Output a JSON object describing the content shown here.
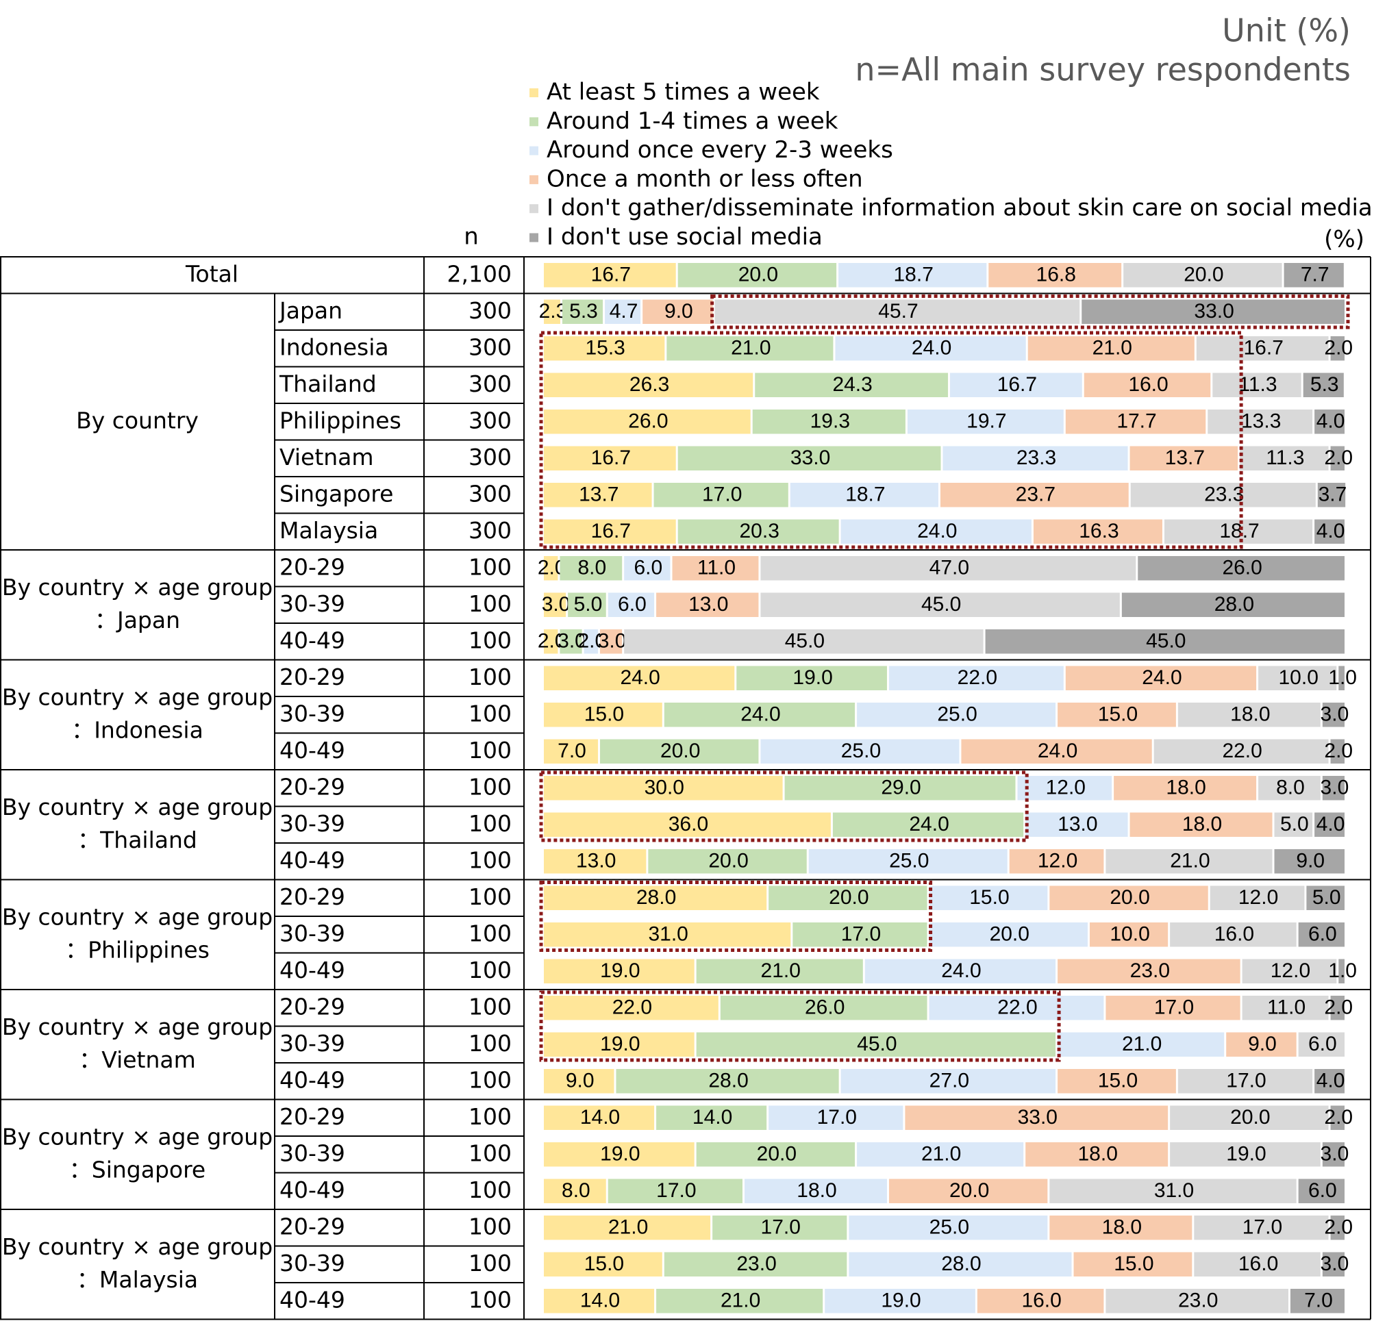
{
  "chart_data": {
    "type": "stacked-bar",
    "unit_note": "Unit (%)",
    "sample_note": "n=All main survey respondents",
    "n_header": "n",
    "percent_header": "(%)",
    "xlim": [
      0,
      100
    ],
    "groups": [
      {
        "label": [
          "Total"
        ],
        "categories": [
          null
        ]
      },
      {
        "label": [
          "By country"
        ],
        "categories": [
          "Japan",
          "Indonesia",
          "Thailand",
          "Philippines",
          "Vietnam",
          "Singapore",
          "Malaysia"
        ]
      },
      {
        "label": [
          "By country × age group",
          "：Japan"
        ],
        "categories": [
          "20-29",
          "30-39",
          "40-49"
        ]
      },
      {
        "label": [
          "By country × age group",
          "：Indonesia"
        ],
        "categories": [
          "20-29",
          "30-39",
          "40-49"
        ]
      },
      {
        "label": [
          "By country × age group",
          "：Thailand"
        ],
        "categories": [
          "20-29",
          "30-39",
          "40-49"
        ]
      },
      {
        "label": [
          "By country × age group",
          "：Philippines"
        ],
        "categories": [
          "20-29",
          "30-39",
          "40-49"
        ]
      },
      {
        "label": [
          "By country × age group",
          "：Vietnam"
        ],
        "categories": [
          "20-29",
          "30-39",
          "40-49"
        ]
      },
      {
        "label": [
          "By country × age group",
          "：Singapore"
        ],
        "categories": [
          "20-29",
          "30-39",
          "40-49"
        ]
      },
      {
        "label": [
          "By country × age group",
          "：Malaysia"
        ],
        "categories": [
          "20-29",
          "30-39",
          "40-49"
        ]
      }
    ],
    "n": [
      {
        "value": 2100,
        "label": "2,100"
      },
      300,
      300,
      300,
      300,
      300,
      300,
      300,
      100,
      100,
      100,
      100,
      100,
      100,
      100,
      100,
      100,
      100,
      100,
      100,
      100,
      100,
      100,
      100,
      100,
      100,
      100,
      100,
      100
    ],
    "series": [
      {
        "name": "At least 5 times a week",
        "color": "#FFE699",
        "values": [
          16.7,
          2.3,
          15.3,
          26.3,
          26.0,
          16.7,
          13.7,
          16.7,
          2,
          3,
          2,
          24,
          15,
          7,
          30,
          36,
          13,
          28,
          31,
          19,
          22,
          19,
          9,
          14,
          19,
          8,
          21,
          15,
          14
        ],
        "value_labels": [
          "16.7",
          "2.3",
          "15.3",
          "26.3",
          "26.0",
          "16.7",
          "13.7",
          "16.7",
          "2.0",
          "3.0",
          "2.0",
          "24.0",
          "15.0",
          "7.0",
          "30.0",
          "36.0",
          "13.0",
          "28.0",
          "31.0",
          "19.0",
          "22.0",
          "19.0",
          "9.0",
          "14.0",
          "19.0",
          "8.0",
          "21.0",
          "15.0",
          "14.0"
        ]
      },
      {
        "name": "Around 1-4 times a week",
        "color": "#C5E0B4",
        "values": [
          20.0,
          5.3,
          21.0,
          24.3,
          19.3,
          33.0,
          17.0,
          20.3,
          8,
          5,
          3,
          19,
          24,
          20,
          29,
          24,
          20,
          20,
          17,
          21,
          26,
          45,
          28,
          14,
          20,
          17,
          17,
          23,
          21
        ],
        "value_labels": [
          "20.0",
          "5.3",
          "21.0",
          "24.3",
          "19.3",
          "33.0",
          "17.0",
          "20.3",
          "8.0",
          "5.0",
          "3.0",
          "19.0",
          "24.0",
          "20.0",
          "29.0",
          "24.0",
          "20.0",
          "20.0",
          "17.0",
          "21.0",
          "26.0",
          "45.0",
          "28.0",
          "14.0",
          "20.0",
          "17.0",
          "17.0",
          "23.0",
          "21.0"
        ]
      },
      {
        "name": "Around once every 2-3 weeks",
        "color": "#DAE8F8",
        "values": [
          18.7,
          4.7,
          24.0,
          16.7,
          19.7,
          23.3,
          18.7,
          24.0,
          6,
          6,
          2,
          22,
          25,
          25,
          12,
          13,
          25,
          15,
          20,
          24,
          22,
          21,
          27,
          17,
          21,
          18,
          25,
          28,
          19
        ],
        "value_labels": [
          "18.7",
          "4.7",
          "24.0",
          "16.7",
          "19.7",
          "23.3",
          "18.7",
          "24.0",
          "6.0",
          "6.0",
          "2.0",
          "22.0",
          "25.0",
          "25.0",
          "12.0",
          "13.0",
          "25.0",
          "15.0",
          "20.0",
          "24.0",
          "22.0",
          "21.0",
          "27.0",
          "17.0",
          "21.0",
          "18.0",
          "25.0",
          "28.0",
          "19.0"
        ]
      },
      {
        "name": "Once a month or less often",
        "color": "#F8CBAD",
        "values": [
          16.8,
          9.0,
          21.0,
          16.0,
          17.7,
          13.7,
          23.7,
          16.3,
          11,
          13,
          3,
          24,
          15,
          24,
          18,
          18,
          12,
          20,
          10,
          23,
          17,
          9,
          15,
          33,
          18,
          20,
          18,
          15,
          16
        ],
        "value_labels": [
          "16.8",
          "9.0",
          "21.0",
          "16.0",
          "17.7",
          "13.7",
          "23.7",
          "16.3",
          "11.0",
          "13.0",
          "3.0",
          "24.0",
          "15.0",
          "24.0",
          "18.0",
          "18.0",
          "12.0",
          "20.0",
          "10.0",
          "23.0",
          "17.0",
          "9.0",
          "15.0",
          "33.0",
          "18.0",
          "20.0",
          "18.0",
          "15.0",
          "16.0"
        ]
      },
      {
        "name": "I don't gather/disseminate information about skin care on social media",
        "color": "#D9D9D9",
        "values": [
          20.0,
          45.7,
          16.7,
          11.3,
          13.3,
          11.3,
          23.3,
          18.7,
          47,
          45,
          45,
          10,
          18,
          22,
          8,
          5,
          21,
          12,
          16,
          12,
          11,
          6,
          17,
          20,
          19,
          31,
          17,
          16,
          23
        ],
        "value_labels": [
          "20.0",
          "45.7",
          "16.7",
          "11.3",
          "13.3",
          "11.3",
          "23.3",
          "18.7",
          "47.0",
          "45.0",
          "45.0",
          "10.0",
          "18.0",
          "22.0",
          "8.0",
          "5.0",
          "21.0",
          "12.0",
          "16.0",
          "12.0",
          "11.0",
          "6.0",
          "17.0",
          "20.0",
          "19.0",
          "31.0",
          "17.0",
          "16.0",
          "23.0"
        ]
      },
      {
        "name": "I don't use social media",
        "color": "#A6A6A6",
        "values": [
          7.7,
          33.0,
          2.0,
          5.3,
          4.0,
          2.0,
          3.7,
          4.0,
          26,
          28,
          45,
          1,
          3,
          2,
          3,
          4,
          9,
          5,
          6,
          1,
          2,
          null,
          4,
          2,
          3,
          6,
          2,
          3,
          7
        ],
        "value_labels": [
          "7.7",
          "33.0",
          "2.0",
          "5.3",
          "4.0",
          "2.0",
          "3.7",
          "4.0",
          "26.0",
          "28.0",
          "45.0",
          "1.0",
          "3.0",
          "2.0",
          "3.0",
          "4.0",
          "9.0",
          "5.0",
          "6.0",
          "1.0",
          "2.0",
          null,
          "4.0",
          "2.0",
          "3.0",
          "6.0",
          "2.0",
          "3.0",
          "7.0"
        ]
      }
    ]
  }
}
